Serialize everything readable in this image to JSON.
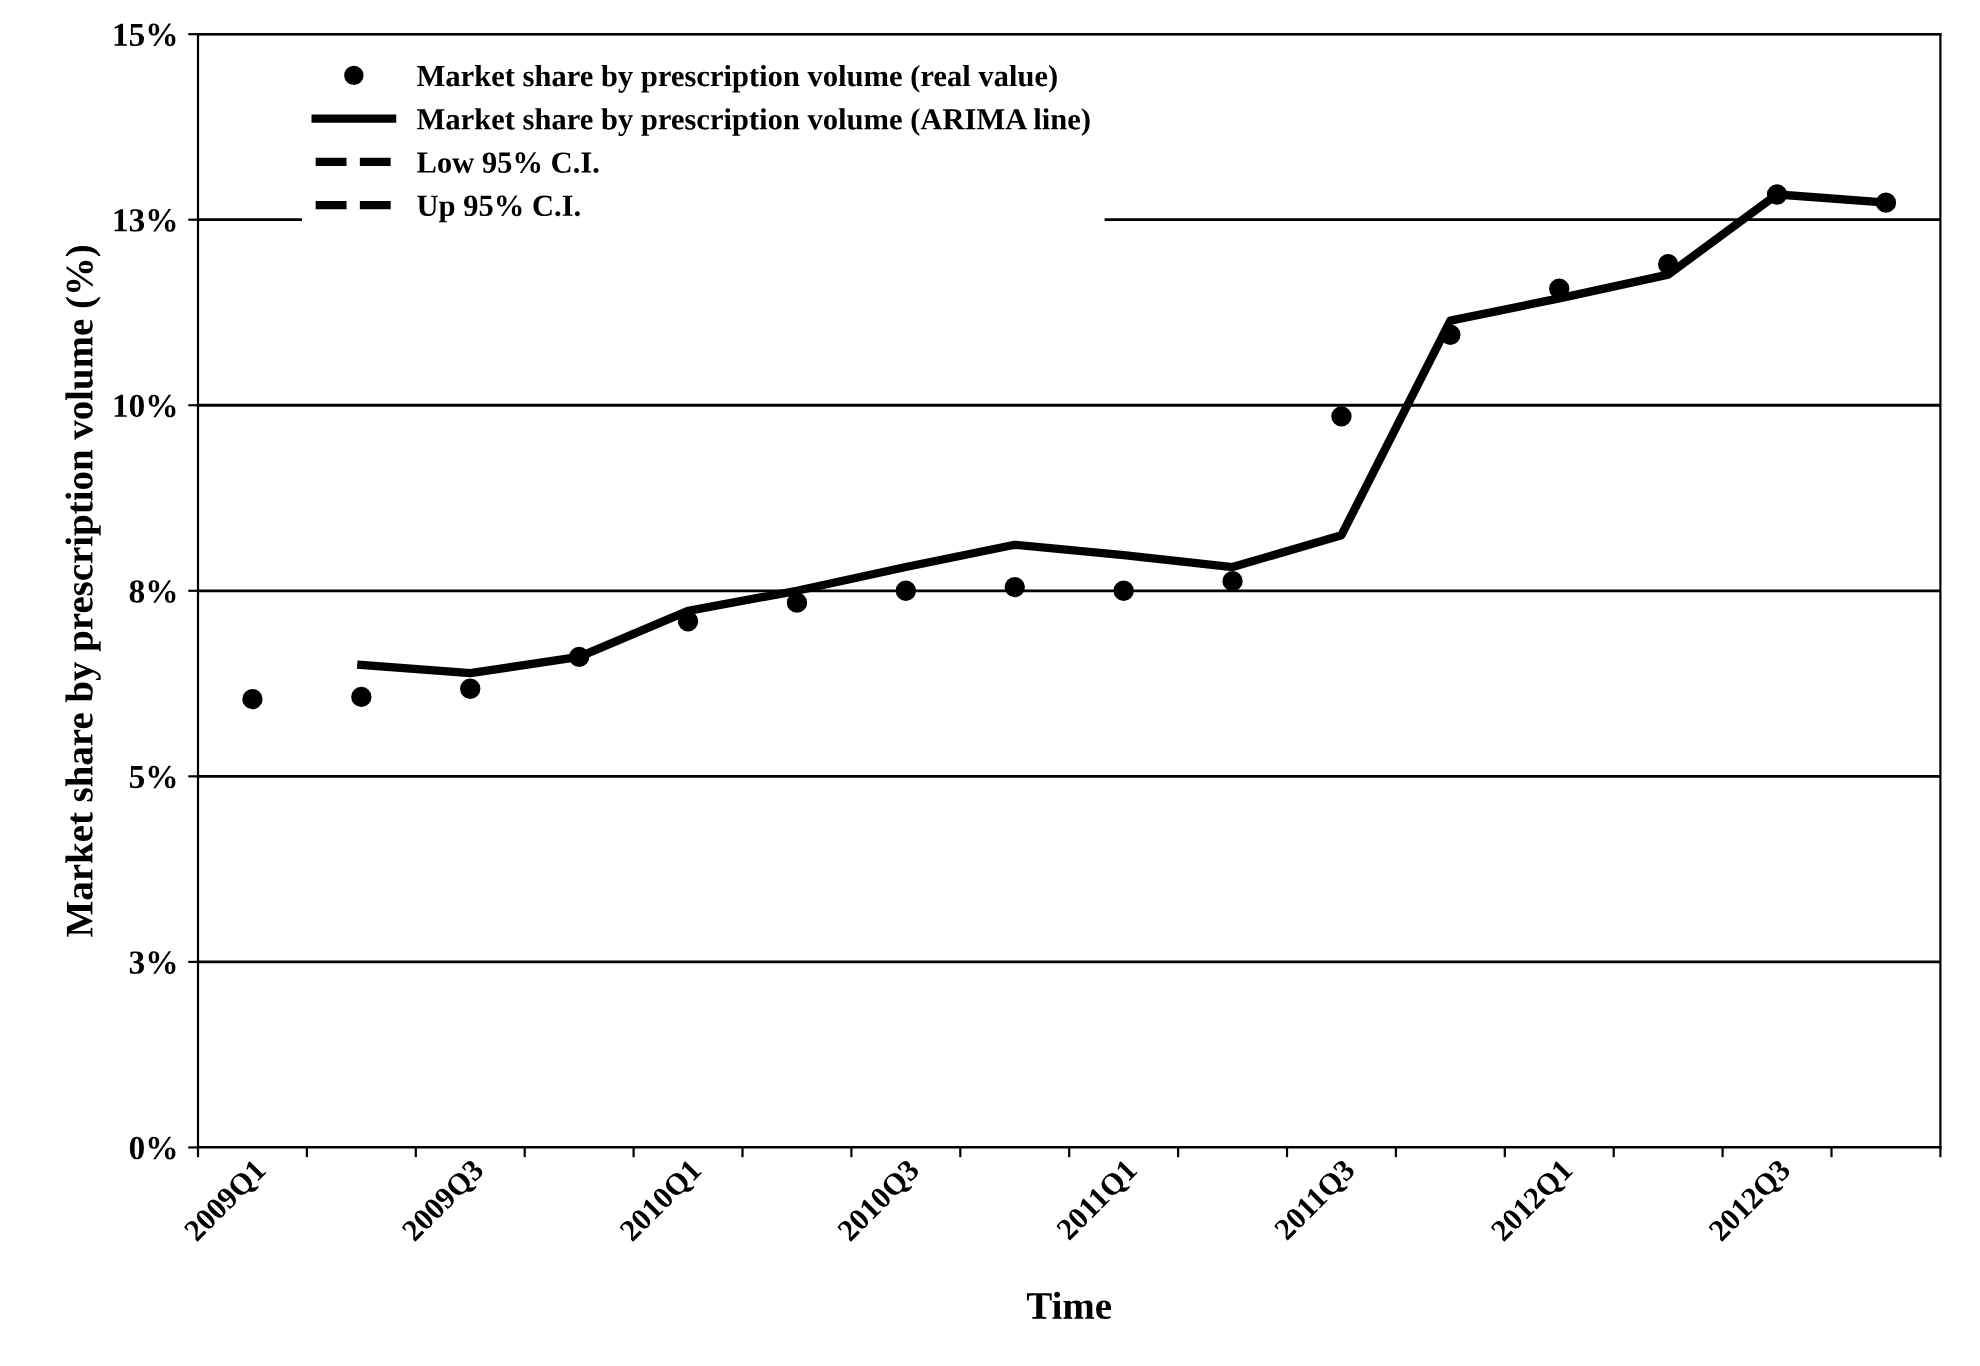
{
  "chart_data": {
    "type": "line",
    "xlabel": "Time",
    "ylabel": "Market share by prescription volume (%)",
    "categories": [
      "2009Q1",
      null,
      "2009Q3",
      null,
      "2010Q1",
      null,
      "2010Q3",
      null,
      "2011Q1",
      null,
      "2011Q3",
      null,
      "2012Q1",
      null,
      "2012Q3",
      null
    ],
    "ylim": [
      0,
      15
    ],
    "yticks": [
      {
        "value": 0,
        "label": "0%"
      },
      {
        "value": 2.5,
        "label": "3%"
      },
      {
        "value": 5,
        "label": "5%"
      },
      {
        "value": 7.5,
        "label": "8%"
      },
      {
        "value": 10,
        "label": "10%"
      },
      {
        "value": 12.5,
        "label": "13%"
      },
      {
        "value": 15,
        "label": "15%"
      }
    ],
    "grid": "y",
    "legend": "top left",
    "series": [
      {
        "name": "Market share by prescription volume (real value)",
        "type": "scatter",
        "marker": "circle",
        "color": "#000000",
        "values": [
          6.04,
          6.07,
          6.18,
          6.61,
          7.09,
          7.34,
          7.5,
          7.55,
          7.5,
          7.63,
          9.85,
          10.95,
          11.57,
          11.9,
          12.84,
          12.73
        ]
      },
      {
        "name": "Market share by prescription volume (ARIMA line)",
        "line_style": "solid",
        "color": "#000000",
        "values": [
          null,
          6.5,
          6.39,
          6.61,
          7.23,
          7.5,
          7.82,
          8.12,
          7.98,
          7.82,
          8.25,
          11.14,
          11.44,
          11.76,
          12.84,
          12.73
        ]
      },
      {
        "name": "Low 95% C.I.",
        "line_style": "dashed",
        "color": "#000000",
        "values": [
          null,
          null,
          null,
          null,
          null,
          null,
          null,
          null,
          null,
          null,
          null,
          null,
          null,
          null,
          null,
          null
        ]
      },
      {
        "name": "Up 95% C.I.",
        "line_style": "dashed",
        "color": "#000000",
        "values": [
          null,
          null,
          null,
          null,
          null,
          null,
          null,
          null,
          null,
          null,
          null,
          null,
          null,
          null,
          null,
          null
        ]
      }
    ]
  }
}
